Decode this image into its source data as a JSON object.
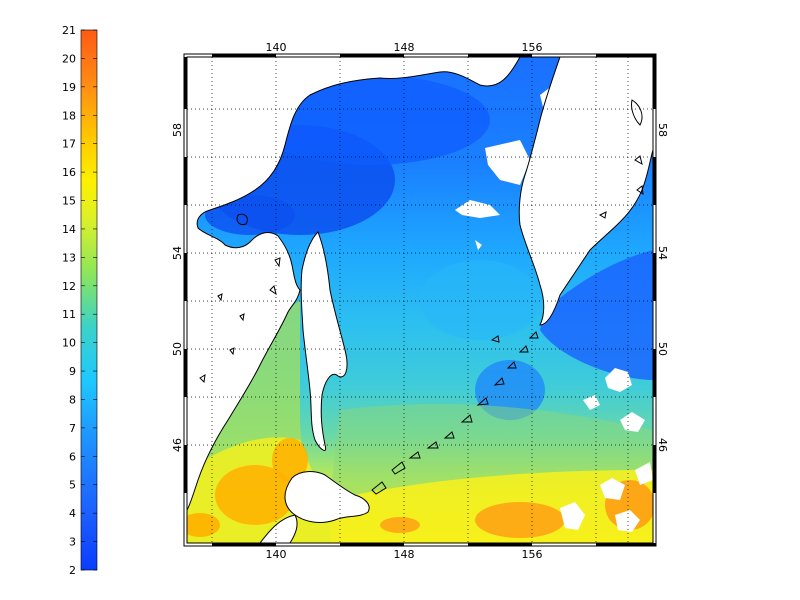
{
  "colorbar": {
    "ticks": [
      "2",
      "3",
      "4",
      "5",
      "6",
      "7",
      "8",
      "9",
      "10",
      "11",
      "12",
      "13",
      "14",
      "15",
      "16",
      "17",
      "18",
      "19",
      "20",
      "21"
    ]
  },
  "map": {
    "lon_ticks": [
      "140",
      "148",
      "156"
    ],
    "lat_ticks": [
      "46",
      "50",
      "54",
      "58"
    ]
  }
}
